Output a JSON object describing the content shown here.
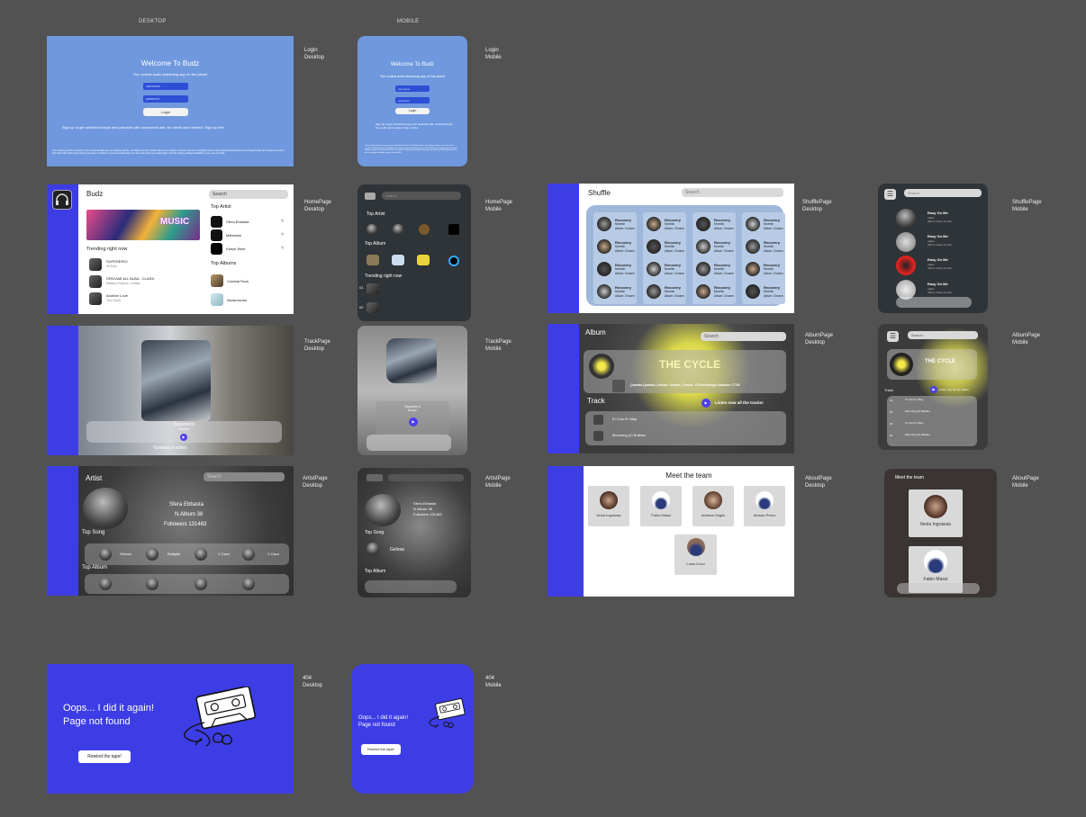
{
  "columns": {
    "desktop": "DESKTOP",
    "mobile": "MOBILE"
  },
  "labels": {
    "login_desktop": [
      "Login",
      "Desktop"
    ],
    "login_mobile": [
      "Login",
      "Mobile"
    ],
    "home_desktop": [
      "HomePage",
      "Desktop"
    ],
    "home_mobile": [
      "HomePage",
      "Mobile"
    ],
    "shuffle_desktop": [
      "ShufflePage",
      "Desktop"
    ],
    "shuffle_mobile": [
      "ShufflePage",
      "Mobile"
    ],
    "track_desktop": [
      "TrackPage",
      "Desktop"
    ],
    "track_mobile": [
      "TrackPage",
      "Mobile"
    ],
    "album_desktop": [
      "AlbumPage",
      "Desktop"
    ],
    "album_mobile": [
      "AlbumPage",
      "Mobile"
    ],
    "artist_desktop": [
      "ArtistPage",
      "Desktop"
    ],
    "artist_mobile": [
      "ArtistPage",
      "Mobile"
    ],
    "about_desktop": [
      "AboutPage",
      "Desktop"
    ],
    "about_mobile": [
      "AboutPage",
      "Mobile"
    ],
    "err_desktop": [
      "404",
      "Desktop"
    ],
    "err_mobile": [
      "404",
      "Mobile"
    ]
  },
  "login": {
    "title": "Welcome To Budz",
    "subtitle": "The coolest audio streaming app on the planet",
    "username_placeholder": "username",
    "password_placeholder": "password",
    "login_button": "Login",
    "signup_text": "Sign up to get unlimited songs and podcasts with occasional ads. No credit card needed. Sign up free",
    "fine_print": "Your privacy and the security of your personal data are, and always will be, our highest priority. That's why we've created a Privacy Center to highlight some of the important elements of our Privacy Policy and to give you more info about the rights and controls you have in relation to your personal data. For more info about your data rights and the privacy settings available to you, see our FAQ."
  },
  "home": {
    "brand": "Budz",
    "search_placeholder": "Search",
    "banner_text": "MUSIC",
    "trending_heading": "Trending right now",
    "trending": [
      {
        "title": "SUPEREROI",
        "artist": "Mr.Rain"
      },
      {
        "title": "ORIGAMI ALL'ALBA - CLARA",
        "artist": "Mattino Festival - Artista"
      },
      {
        "title": "Another Love",
        "artist": "Tom Odell"
      }
    ],
    "top_artist_heading": "Top Artist",
    "top_artists": [
      "Sfera Ebbasta",
      "Måneskin",
      "Kanye West"
    ],
    "top_albums_heading": "Top Albums",
    "top_albums": [
      "Combat Rock",
      "Inkasmorato"
    ],
    "mobile_search": "Search",
    "mobile_top_artist": "Top Artist",
    "mobile_top_album": "Top Album",
    "mobile_trending": "Trending right now",
    "mobile_index": [
      "01",
      "02"
    ]
  },
  "shuffle": {
    "title": "Shuffle",
    "search_placeholder": "Search",
    "cards": [
      {
        "title": "Recovery",
        "artist": "Mrvelsh",
        "album": "Album: Chosen"
      },
      {
        "title": "Recovery",
        "artist": "Mrvelsh",
        "album": "Album: Chosen"
      },
      {
        "title": "Recovery",
        "artist": "Mrvelsh",
        "album": "Album: Chosen"
      },
      {
        "title": "Recovery",
        "artist": "Mrvelsh",
        "album": "Album: Chosen"
      }
    ],
    "mobile_search": "Search",
    "mobile_items": [
      {
        "title": "Easy On Me",
        "artist": "Adele",
        "album": "Album: Easy On Me"
      },
      {
        "title": "Easy On Me",
        "artist": "Adele",
        "album": "Album: Easy On Me"
      },
      {
        "title": "Easy On Me",
        "artist": "Adele",
        "album": "Album: Easy On Me"
      },
      {
        "title": "Easy On Me",
        "artist": "Adele",
        "album": "Album: Easy On Me"
      }
    ]
  },
  "track": {
    "song": "Supereroi",
    "artist": "Mr.Rain",
    "watch_video": "Guarda il video"
  },
  "album": {
    "title": "Album",
    "search_placeholder": "Search",
    "album_name": "THE CYCLE",
    "details": "Quando Quando | Artists: Jordan | Tracks: 12 Recordings Duration: 77:51",
    "track_heading": "Track",
    "listen_now": "Listen now all the tracks!",
    "tracks": [
      "If I Can If I May",
      "Mourning (II) Bullduo"
    ],
    "mobile_search": "Search",
    "mobile_track": "Track",
    "mobile_listen": "Listen now all the tracks!",
    "mobile_index": [
      "01",
      "02",
      "03",
      "04"
    ],
    "mobile_tracks": [
      "If I Can If I May",
      "Mourning (II) Bullduo",
      "If I Can If I May",
      "Mourning (II) Bullduo"
    ]
  },
  "artist": {
    "title": "Artist",
    "search_placeholder": "Search",
    "name": "Sfera Ebbasta",
    "albums": "N.Album 38",
    "followers": "Followers 131463",
    "top_song": "Top Song",
    "top_album": "Top Album",
    "songs": [
      "Gelosa",
      "Bottiglie",
      "X Cazo",
      "X Cazo"
    ],
    "mobile_name": "Sfera Ebbasta",
    "mobile_albums": "N.Album 38",
    "mobile_followers": "Followers 131463",
    "mobile_top_song": "Top Song",
    "mobile_song": "Gelosa",
    "mobile_top_album": "Top Album"
  },
  "about": {
    "title": "Meet the team",
    "members": [
      "Ilenia Ingrassia",
      "Fabio Massi",
      "Adriana Origlio",
      "Alessio Perez",
      "Luisa Zocci"
    ],
    "mobile_title": "Meet the team",
    "mobile_members": [
      "Ilenia Ingrassia",
      "Fabio Massi"
    ]
  },
  "error404": {
    "line1": "Oops... I did it again!",
    "line2": "Page not found",
    "button": "Rewind the tape!"
  },
  "colors": {
    "bg": "#525252",
    "login_blue": "#6f98de",
    "accent_purple": "#3d3de6",
    "dark_panel": "#2f3438"
  }
}
